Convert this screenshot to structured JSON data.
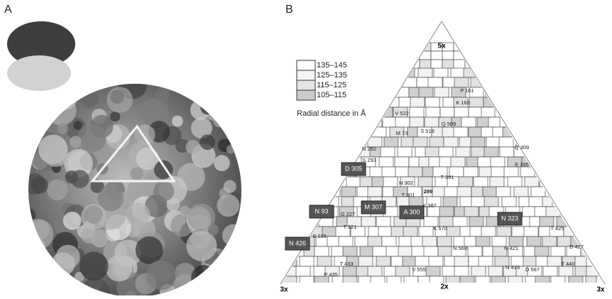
{
  "panels": {
    "a": "A",
    "b": "B"
  },
  "legend": {
    "entries": [
      "135–145",
      "125–135",
      "115–125",
      "105–115"
    ],
    "caption": "Radial distance in Å"
  },
  "axes": {
    "top": "5x",
    "bottom_left": "3x",
    "bottom_mid": "2x",
    "bottom_right": "3x"
  },
  "residues": [
    "P 161",
    "K 163",
    "V 522",
    "M 73",
    "S 519",
    "Q 509",
    "D 305",
    "S 293",
    "N 292",
    "T 391",
    "N 302",
    "T 301",
    "299",
    "K 387",
    "N 93",
    "M 307",
    "A 300",
    "N 323",
    "N 426",
    "S 226",
    "T 221",
    "G 227",
    "K 570",
    "N 560",
    "E 395",
    "Q 309",
    "T 425",
    "N 421",
    "V 555",
    "D 567",
    "T 433",
    "P 435",
    "N 419",
    "T 440",
    "D 427"
  ]
}
